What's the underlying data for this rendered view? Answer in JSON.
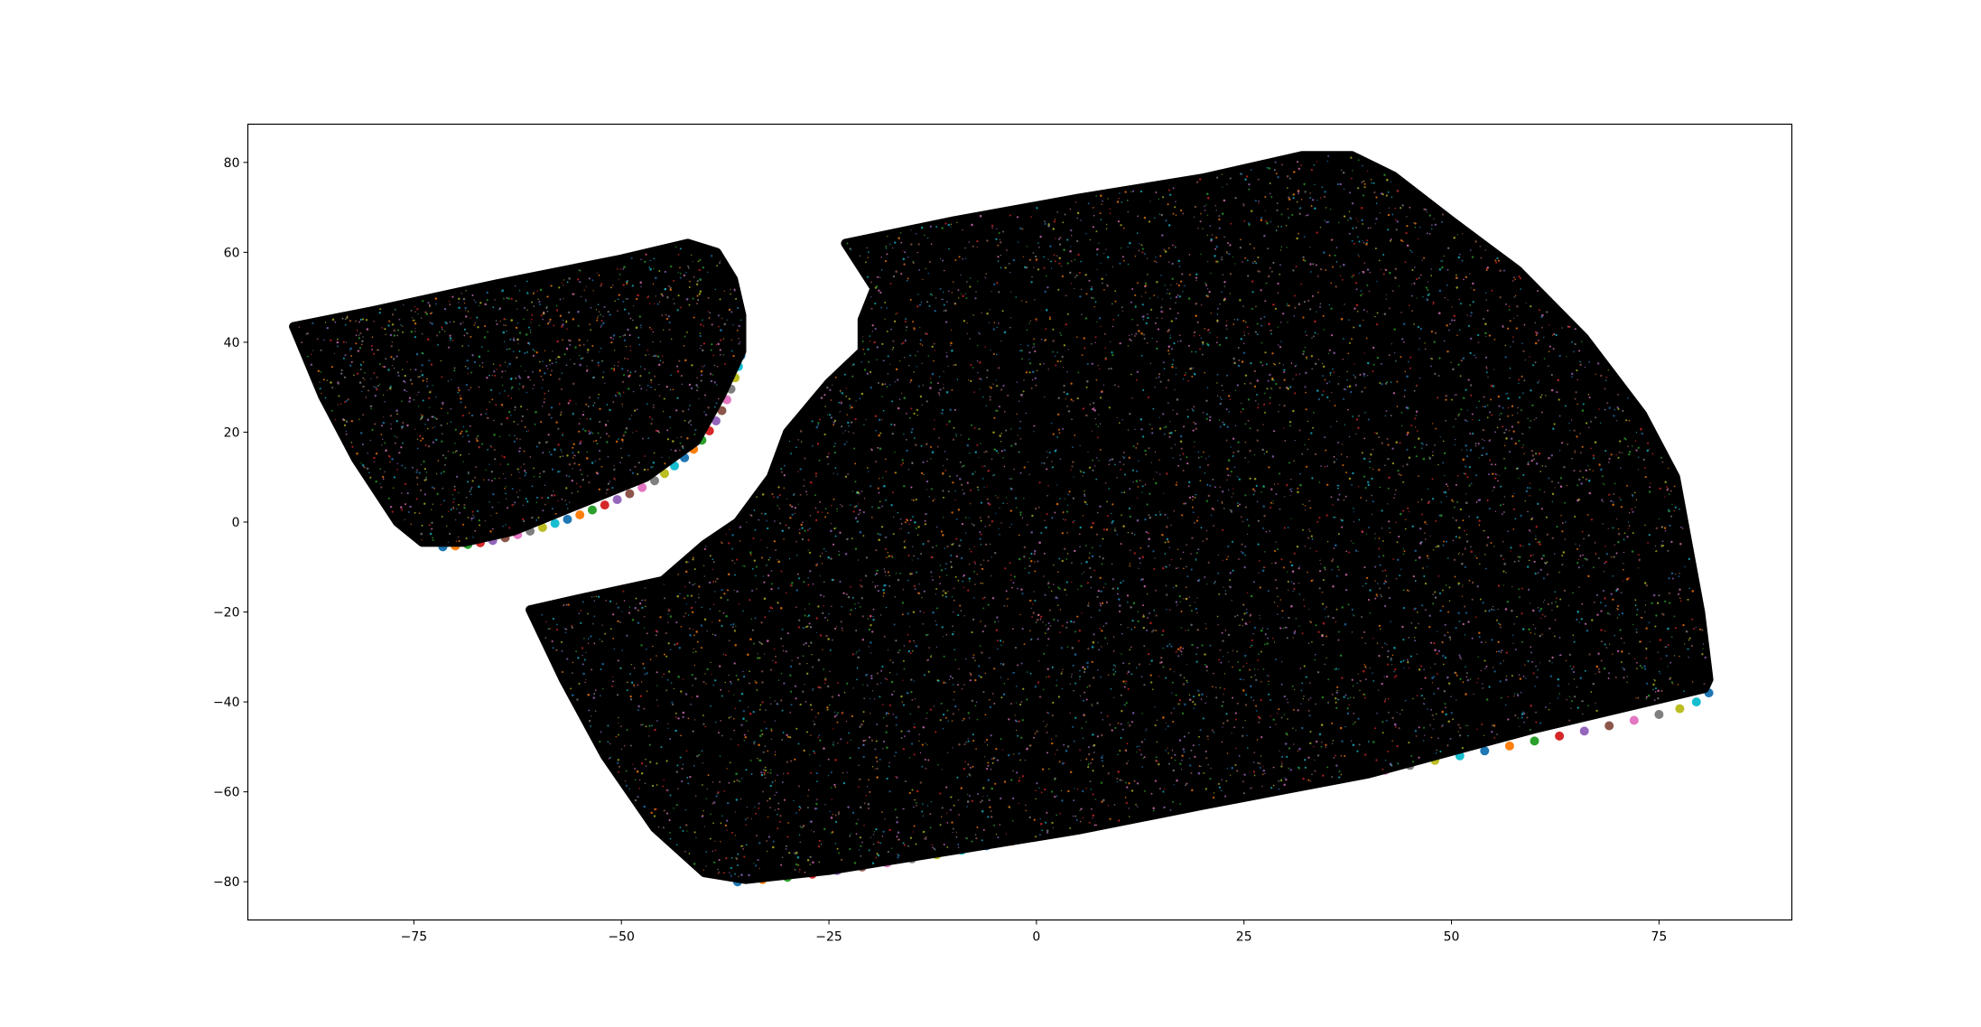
{
  "chart_data": {
    "type": "scatter",
    "title": "",
    "xlabel": "",
    "ylabel": "",
    "xlim": [
      -95,
      91
    ],
    "ylim": [
      -88.5,
      88.5
    ],
    "grid": false,
    "legend": "none",
    "x_ticks": [
      {
        "value": -75,
        "label": "−75"
      },
      {
        "value": -50,
        "label": "−50"
      },
      {
        "value": -25,
        "label": "−25"
      },
      {
        "value": 0,
        "label": "0"
      },
      {
        "value": 25,
        "label": "25"
      },
      {
        "value": 50,
        "label": "50"
      },
      {
        "value": 75,
        "label": "75"
      }
    ],
    "y_ticks": [
      {
        "value": -80,
        "label": "−80"
      },
      {
        "value": -60,
        "label": "−60"
      },
      {
        "value": -40,
        "label": "−40"
      },
      {
        "value": -20,
        "label": "−20"
      },
      {
        "value": 0,
        "label": "0"
      },
      {
        "value": 20,
        "label": "20"
      },
      {
        "value": 40,
        "label": "40"
      },
      {
        "value": 60,
        "label": "60"
      },
      {
        "value": 80,
        "label": "80"
      }
    ],
    "regions": [
      {
        "name": "small-region",
        "fill_color": "#000000",
        "outline": [
          [
            -89.5,
            43.5
          ],
          [
            -80,
            47
          ],
          [
            -65,
            53
          ],
          [
            -50,
            58.5
          ],
          [
            -42,
            62
          ],
          [
            -38.5,
            60
          ],
          [
            -36.5,
            54
          ],
          [
            -35.5,
            46
          ],
          [
            -35.5,
            38
          ],
          [
            -38,
            28
          ],
          [
            -41,
            18
          ],
          [
            -47,
            10
          ],
          [
            -55,
            4
          ],
          [
            -63,
            -2
          ],
          [
            -69,
            -4.5
          ],
          [
            -74,
            -4.5
          ],
          [
            -77,
            0
          ],
          [
            -82,
            14
          ],
          [
            -86,
            28
          ],
          [
            -89.5,
            43.5
          ]
        ],
        "edge_points": [
          [
            -71.5,
            -5.5
          ],
          [
            -70,
            -5.3
          ],
          [
            -68.5,
            -5
          ],
          [
            -67,
            -4.6
          ],
          [
            -65.5,
            -4.1
          ],
          [
            -64,
            -3.5
          ],
          [
            -62.5,
            -2.8
          ],
          [
            -61,
            -2
          ],
          [
            -59.5,
            -1.2
          ],
          [
            -58,
            -0.3
          ],
          [
            -56.5,
            0.6
          ],
          [
            -55,
            1.6
          ],
          [
            -53.5,
            2.7
          ],
          [
            -52,
            3.8
          ],
          [
            -50.5,
            5
          ],
          [
            -49,
            6.3
          ],
          [
            -47.5,
            7.7
          ],
          [
            -46,
            9.2
          ],
          [
            -44.8,
            10.8
          ],
          [
            -43.6,
            12.5
          ],
          [
            -42.4,
            14.3
          ],
          [
            -41.3,
            16.2
          ],
          [
            -40.3,
            18.2
          ],
          [
            -39.4,
            20.3
          ],
          [
            -38.6,
            22.5
          ],
          [
            -37.9,
            24.8
          ],
          [
            -37.3,
            27.2
          ],
          [
            -36.8,
            29.6
          ],
          [
            -36.3,
            32.1
          ],
          [
            -35.9,
            34.6
          ],
          [
            -35.6,
            37
          ]
        ],
        "point_count": 1400
      },
      {
        "name": "large-region",
        "fill_color": "#000000",
        "outline": [
          [
            -23,
            62
          ],
          [
            -10,
            67
          ],
          [
            5,
            72
          ],
          [
            20,
            76.5
          ],
          [
            32,
            81.5
          ],
          [
            38,
            81.5
          ],
          [
            43,
            77
          ],
          [
            50,
            67
          ],
          [
            58,
            56
          ],
          [
            66,
            41
          ],
          [
            73,
            24
          ],
          [
            77,
            10
          ],
          [
            80,
            -20
          ],
          [
            81,
            -35
          ],
          [
            80.5,
            -37
          ],
          [
            60,
            -46
          ],
          [
            40,
            -56
          ],
          [
            20,
            -63
          ],
          [
            5,
            -68.5
          ],
          [
            -10,
            -73
          ],
          [
            -25,
            -77.5
          ],
          [
            -35,
            -79.5
          ],
          [
            -40,
            -78
          ],
          [
            -46,
            -68
          ],
          [
            -52,
            -52
          ],
          [
            -57,
            -35
          ],
          [
            -61,
            -19.5
          ],
          [
            -55,
            -17
          ],
          [
            -45,
            -13
          ],
          [
            -40,
            -5
          ],
          [
            -36,
            0
          ],
          [
            -32,
            10
          ],
          [
            -30,
            20
          ],
          [
            -25,
            31
          ],
          [
            -21,
            38
          ],
          [
            -21,
            45
          ],
          [
            -19.5,
            52
          ],
          [
            -23,
            62
          ]
        ],
        "edge_points": [
          [
            -36,
            -80
          ],
          [
            -33,
            -79.5
          ],
          [
            -30,
            -79
          ],
          [
            -27,
            -78.3
          ],
          [
            -24,
            -77.5
          ],
          [
            -21,
            -76.7
          ],
          [
            -18,
            -75.8
          ],
          [
            -15,
            -74.9
          ],
          [
            -12,
            -74
          ],
          [
            -9,
            -73
          ],
          [
            -6,
            -72
          ],
          [
            -3,
            -71
          ],
          [
            0,
            -70
          ],
          [
            3,
            -69
          ],
          [
            6,
            -68
          ],
          [
            9,
            -66.9
          ],
          [
            12,
            -65.8
          ],
          [
            15,
            -64.8
          ],
          [
            18,
            -63.7
          ],
          [
            21,
            -62.6
          ],
          [
            24,
            -61.6
          ],
          [
            27,
            -60.5
          ],
          [
            30,
            -59.4
          ],
          [
            33,
            -58.4
          ],
          [
            36,
            -57.3
          ],
          [
            39,
            -56.2
          ],
          [
            42,
            -55.2
          ],
          [
            45,
            -54.1
          ],
          [
            48,
            -53
          ],
          [
            51,
            -52
          ],
          [
            54,
            -50.9
          ],
          [
            57,
            -49.8
          ],
          [
            60,
            -48.7
          ],
          [
            63,
            -47.6
          ],
          [
            66,
            -46.5
          ],
          [
            69,
            -45.3
          ],
          [
            72,
            -44.1
          ],
          [
            75,
            -42.8
          ],
          [
            77.5,
            -41.5
          ],
          [
            79.5,
            -40
          ],
          [
            81,
            -38
          ]
        ],
        "point_count": 6500
      }
    ]
  },
  "colors": {
    "background": "#ffffff",
    "axes": "#000000",
    "marker_edge": "#000000",
    "palette": [
      "#1f77b4",
      "#ff7f0e",
      "#2ca02c",
      "#d62728",
      "#9467bd",
      "#8c564b",
      "#e377c2",
      "#7f7f7f",
      "#bcbd22",
      "#17becf"
    ]
  }
}
